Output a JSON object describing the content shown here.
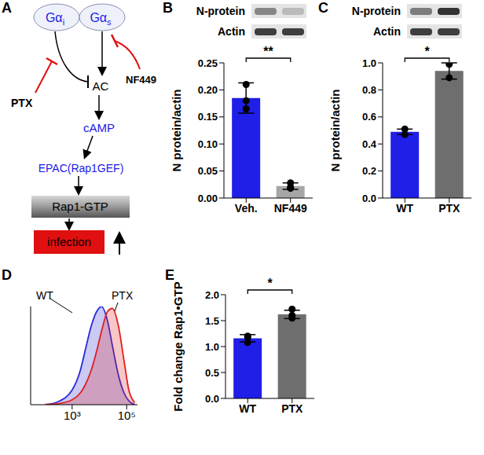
{
  "diagram": {
    "title": "A",
    "g_i": {
      "label": "Gα",
      "subscript": "i"
    },
    "g_s": {
      "label": "Gα",
      "subscript": "s"
    },
    "ptx": "PTX",
    "nf449": "NF449",
    "ac": "AC",
    "camp": "cAMP",
    "epac": "EPAC(Rap1GEF)",
    "rap1": "Rap1-GTP",
    "outcome": "infection"
  },
  "chart_data": [
    {
      "type": "bar",
      "title": "B",
      "blot_labels": [
        "N-protein",
        "Actin"
      ],
      "ylabel": "N protein/actin",
      "categories": [
        "Veh.",
        "NF449"
      ],
      "values": [
        0.185,
        0.022
      ],
      "errors": [
        0.028,
        0.006
      ],
      "points": [
        [
          0.21,
          0.165,
          0.18
        ],
        [
          0.02,
          0.028,
          0.018
        ]
      ],
      "colors": [
        "#1f1fe8",
        "#a6a6a6"
      ],
      "ylim": [
        0,
        0.25
      ],
      "yticks": [
        {
          "value": 0,
          "label": "0.00"
        },
        0.05,
        {
          "value": 0.1,
          "label": "0.10"
        },
        0.15,
        {
          "value": 0.2,
          "label": "0.20"
        },
        0.25
      ],
      "annotations": [
        "**"
      ]
    },
    {
      "type": "bar",
      "title": "C",
      "blot_labels": [
        "N-protein",
        "Actin"
      ],
      "ylabel": "N protein/actin",
      "categories": [
        "WT",
        "PTX"
      ],
      "values": [
        0.49,
        0.94
      ],
      "errors": [
        0.02,
        0.06
      ],
      "points": [
        [
          0.51,
          0.47
        ],
        [
          0.99,
          0.89
        ]
      ],
      "colors": [
        "#1f1fe8",
        "#6e6e6e"
      ],
      "ylim": [
        0,
        1
      ],
      "yticks": [
        {
          "value": 0,
          "label": "0.0"
        },
        0.2,
        0.4,
        0.6,
        0.8,
        {
          "value": 1,
          "label": "1.0"
        }
      ],
      "annotations": [
        "*"
      ]
    },
    {
      "type": "area",
      "title": "D",
      "x": [
        100,
        300,
        1000,
        2000,
        3000,
        5000,
        8000,
        12000,
        20000,
        30000,
        50000,
        80000,
        120000,
        200000
      ],
      "series": [
        {
          "name": "WT",
          "color": "#2a2ad8",
          "values": [
            0,
            3,
            15,
            35,
            55,
            80,
            95,
            100,
            85,
            60,
            30,
            12,
            4,
            0
          ]
        },
        {
          "name": "PTX",
          "color": "#e02020",
          "values": [
            0,
            1,
            5,
            12,
            20,
            35,
            55,
            75,
            95,
            98,
            80,
            45,
            15,
            2
          ]
        }
      ],
      "log": "x",
      "xlim": [
        30,
        250000
      ],
      "xticks": [
        {
          "value": 1000,
          "label": "10³"
        },
        {
          "value": 100000,
          "label": "10⁵"
        }
      ],
      "ylim": [
        0,
        100
      ],
      "tick_labels": "x"
    },
    {
      "type": "bar",
      "title": "E",
      "ylabel": "Fold change Rap1•GTP",
      "categories": [
        "WT",
        "PTX"
      ],
      "values": [
        1.16,
        1.62
      ],
      "errors": [
        0.07,
        0.08
      ],
      "points": [
        [
          1.2,
          1.08,
          1.18
        ],
        [
          1.72,
          1.6,
          1.55
        ]
      ],
      "colors": [
        "#1f1fe8",
        "#6e6e6e"
      ],
      "ylim": [
        0,
        2
      ],
      "yticks": [
        {
          "value": 0,
          "label": "0.0"
        },
        0.5,
        {
          "value": 1,
          "label": "1.0"
        },
        1.5,
        {
          "value": 2,
          "label": "2.0"
        }
      ],
      "annotations": [
        "*"
      ]
    }
  ]
}
